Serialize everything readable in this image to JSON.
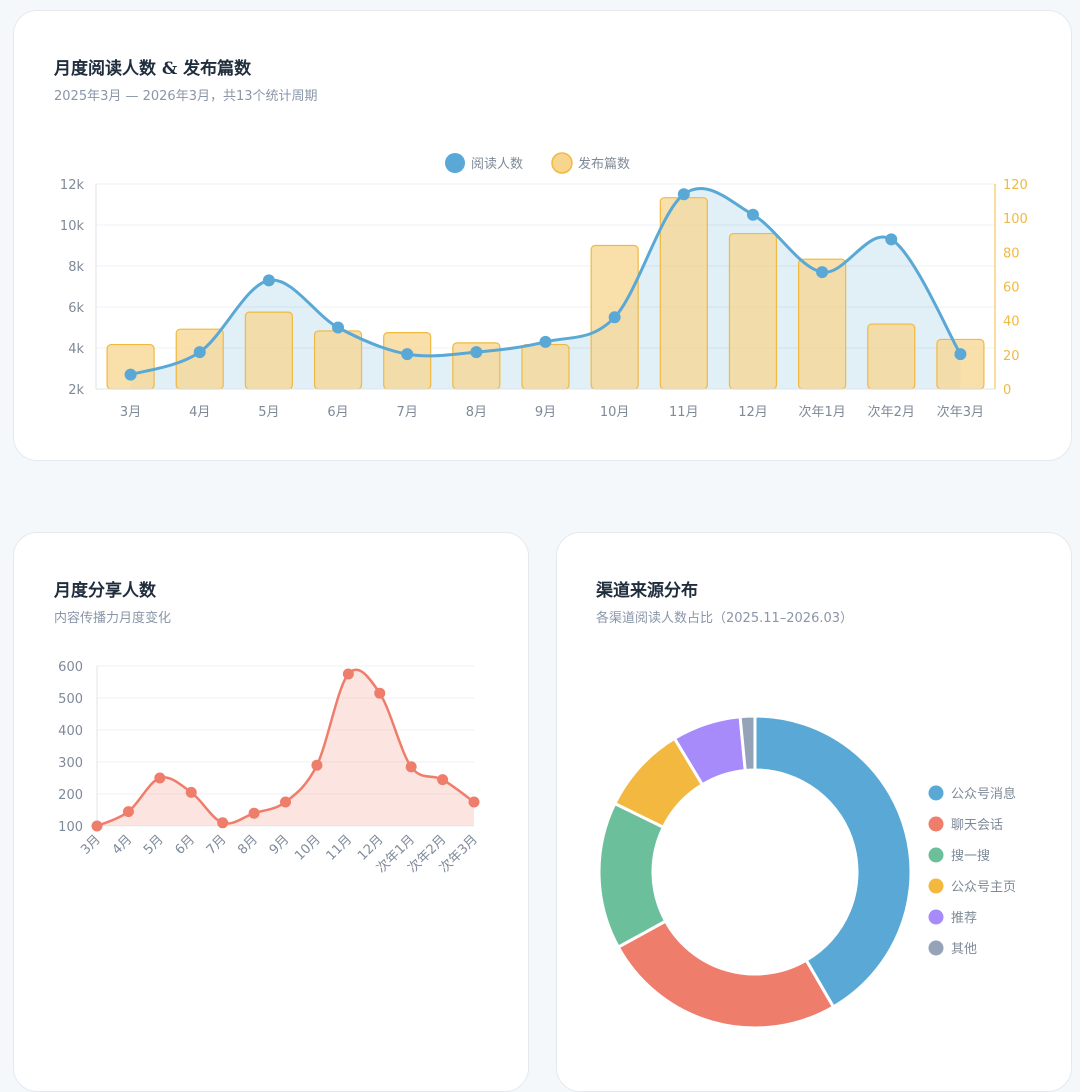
{
  "colors": {
    "reads": "#5aa8d5",
    "posts_fill": "#f7d58f",
    "posts_stroke": "#f0b940",
    "share": "#ef7d6b",
    "axis_text": "#7f8a99",
    "grid": "#edf0f4"
  },
  "main": {
    "title": "月度阅读人数 & 发布篇数",
    "subtitle": "2025年3月 — 2026年3月，共13个统计周期",
    "legend": [
      "阅读人数",
      "发布篇数"
    ]
  },
  "share": {
    "title": "月度分享人数",
    "subtitle": "内容传播力月度变化"
  },
  "channel": {
    "title": "渠道来源分布",
    "subtitle": "各渠道阅读人数占比（2025.11–2026.03）"
  },
  "chart_data": [
    {
      "type": "bar+line",
      "categories": [
        "3月",
        "4月",
        "5月",
        "6月",
        "7月",
        "8月",
        "9月",
        "10月",
        "11月",
        "12月",
        "次年1月",
        "次年2月",
        "次年3月"
      ],
      "series": [
        {
          "name": "阅读人数",
          "type": "line",
          "axis": "left",
          "values": [
            2700,
            3800,
            7300,
            5000,
            3700,
            3800,
            4300,
            5500,
            11500,
            10500,
            7700,
            9300,
            3700
          ]
        },
        {
          "name": "发布篇数",
          "type": "bar",
          "axis": "right",
          "values": [
            26,
            35,
            45,
            34,
            33,
            27,
            26,
            84,
            112,
            91,
            76,
            38,
            29
          ]
        }
      ],
      "ylim_left": [
        2000,
        12000
      ],
      "yticks_left": [
        "2k",
        "4k",
        "6k",
        "8k",
        "10k",
        "12k"
      ],
      "ylim_right": [
        0,
        120
      ],
      "yticks_right": [
        "0",
        "20",
        "40",
        "60",
        "80",
        "100",
        "120"
      ],
      "grid": true,
      "legend_position": "top-center"
    },
    {
      "type": "area",
      "categories": [
        "3月",
        "4月",
        "5月",
        "6月",
        "7月",
        "8月",
        "9月",
        "10月",
        "11月",
        "12月",
        "次年1月",
        "次年2月",
        "次年3月"
      ],
      "values": [
        100,
        145,
        250,
        205,
        110,
        140,
        175,
        290,
        575,
        515,
        285,
        245,
        175
      ],
      "ylim": [
        100,
        600
      ],
      "yticks": [
        "100",
        "200",
        "300",
        "400",
        "500",
        "600"
      ],
      "grid": true
    },
    {
      "type": "pie",
      "donut": true,
      "labels": [
        "公众号消息",
        "聊天会话",
        "搜一搜",
        "公众号主页",
        "推荐",
        "其他"
      ],
      "values": [
        41,
        25,
        15,
        9,
        7,
        1.5
      ],
      "colors": [
        "#5aa8d5",
        "#ef7d6b",
        "#6cbf9b",
        "#f2b840",
        "#a78bfa",
        "#94a3b8"
      ],
      "legend_position": "right"
    }
  ]
}
